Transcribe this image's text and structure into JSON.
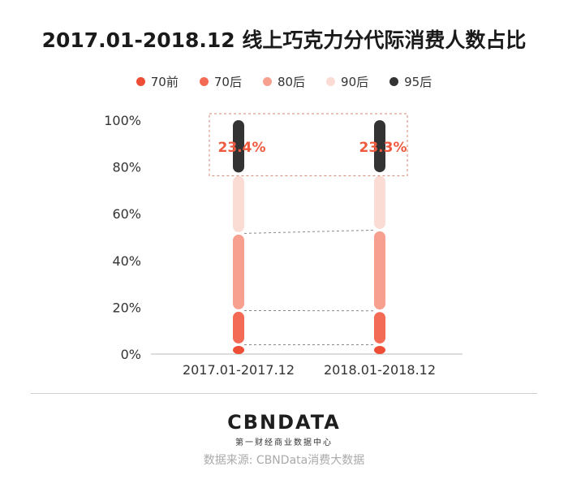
{
  "chart_data": {
    "type": "bar",
    "title": "2017.01-2018.12 线上巧克力分代际消费人数占比",
    "categories": [
      "2017.01-2017.12",
      "2018.01-2018.12"
    ],
    "series": [
      {
        "name": "70前",
        "color": "#ee4e36",
        "values": [
          4,
          4
        ]
      },
      {
        "name": "70后",
        "color": "#f36b55",
        "values": [
          14.6,
          14.5
        ]
      },
      {
        "name": "80后",
        "color": "#f8a08f",
        "values": [
          33.0,
          34.5
        ]
      },
      {
        "name": "90后",
        "color": "#fbdcd5",
        "values": [
          25.0,
          23.7
        ]
      },
      {
        "name": "95后",
        "color": "#333333",
        "values": [
          23.4,
          23.3
        ]
      }
    ],
    "annotations": [
      "23.4%",
      "23.3%"
    ],
    "y_ticks": [
      "0%",
      "20%",
      "40%",
      "60%",
      "80%",
      "100%"
    ],
    "ylim": [
      0,
      100
    ],
    "xlabel": "",
    "ylabel": "",
    "legend_position": "top",
    "grid": false
  },
  "brand": {
    "logo": "CBNDATA",
    "logo_sub": "第一财经商业数据中心"
  },
  "source": "数据来源: CBNData消费大数据"
}
